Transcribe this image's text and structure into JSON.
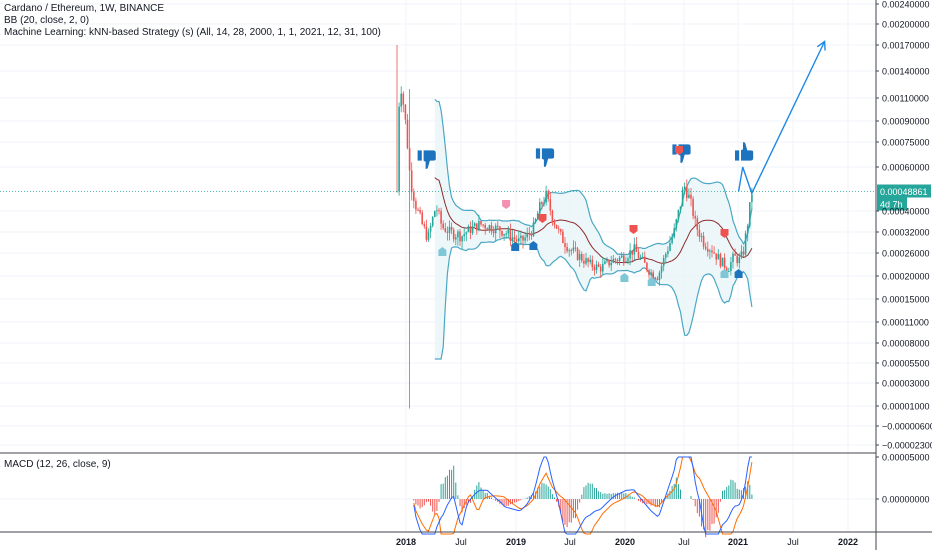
{
  "chart": {
    "title": "Cardano / Ethereum, 1W, BINANCE",
    "indicator_bb": "BB (20, close, 2, 0)",
    "indicator_knn": "Machine Learning: kNN-based Strategy (s) (All, 14, 28, 2000, 1, 1, 2021, 12, 31, 100)",
    "indicator_macd": "MACD (12, 26, close, 9)",
    "price_label": "0.00048861",
    "countdown_label": "4d 7h",
    "colors": {
      "up": "#26a69a",
      "down": "#ef5350",
      "bb_band": "#2962ff",
      "bb_line": "#4aa8c4",
      "bb_fill": "#e6f4f6",
      "basis": "#8b2b2b",
      "macd_line": "#2962ff",
      "signal_line": "#ff6d00",
      "hist_up": "#26a69a",
      "hist_down": "#ef5350",
      "arrow": "#1e88e5",
      "thumb": "#1e73be",
      "price_tag": "#26a69a",
      "grid": "#f0f3fa",
      "axis_text": "#131722"
    }
  },
  "chart_data": {
    "type": "candlestick",
    "x_axis_labels": [
      "2018",
      "Jul",
      "2019",
      "Jul",
      "2020",
      "Jul",
      "2021",
      "Jul",
      "2022"
    ],
    "y_axis_labels": [
      "0.00240000",
      "0.00200000",
      "0.00170000",
      "0.00140000",
      "0.00110000",
      "0.00090000",
      "0.00075000",
      "0.00060000",
      "0.00040000",
      "0.00032000",
      "0.00026000",
      "0.00020000",
      "0.00015000",
      "0.00011000",
      "0.00008000",
      "0.00005500",
      "0.00003000",
      "0.00001000",
      "−0.00000600",
      "−0.00002300"
    ],
    "macd_axis_labels": [
      "0.00005000",
      "0.00000000"
    ],
    "y_scale": "nonlinear",
    "grid": true,
    "projection_arrow": {
      "points": [
        [
          "2021-01",
          0.00048861
        ],
        [
          "2021-02",
          0.0006
        ],
        [
          "2021-03",
          0.00048
        ],
        [
          "2021-11",
          0.00175
        ]
      ]
    },
    "signals": {
      "thumbs_down": [
        "2018-03",
        "2019-04",
        "2020-07"
      ],
      "thumbs_up": [
        "2021-01"
      ],
      "sell_markers": [
        "2018-12",
        "2019-04",
        "2020-02",
        "2020-07",
        "2020-12"
      ],
      "buy_markers": [
        "2018-05",
        "2019-01",
        "2019-03",
        "2020-01",
        "2020-04",
        "2020-12",
        "2021-01"
      ]
    }
  }
}
